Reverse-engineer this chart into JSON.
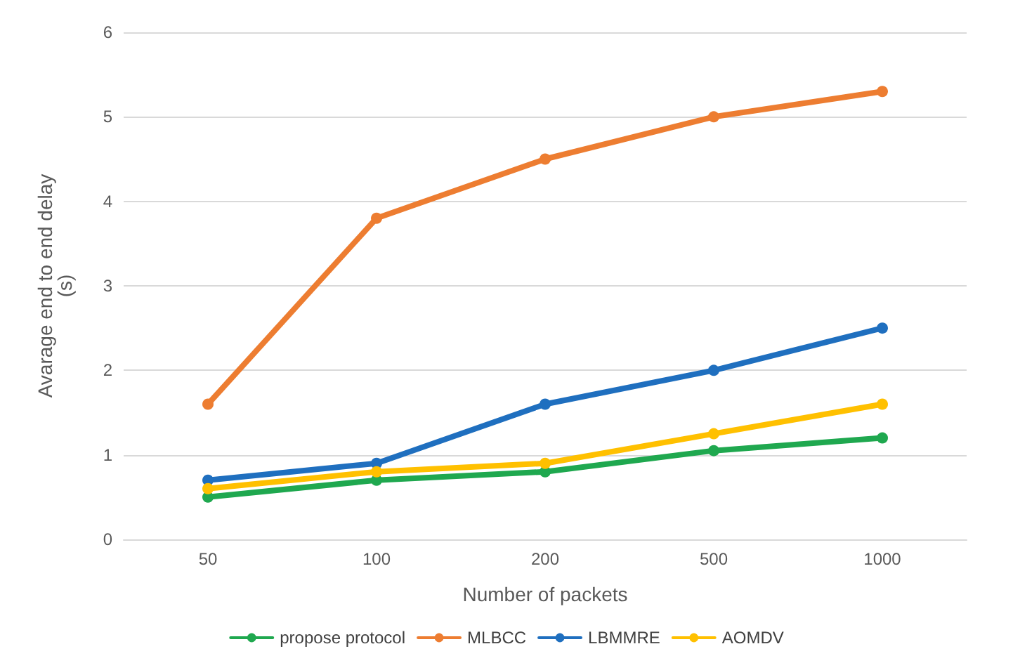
{
  "chart_data": {
    "type": "line",
    "xlabel": "Number of packets",
    "ylabel": "Avarage end to end delay\n(s)",
    "categories": [
      "50",
      "100",
      "200",
      "500",
      "1000"
    ],
    "series": [
      {
        "name": "propose protocol",
        "color": "#1fa84f",
        "values": [
          0.5,
          0.7,
          0.8,
          1.05,
          1.2
        ]
      },
      {
        "name": "MLBCC",
        "color": "#ed7d31",
        "values": [
          1.6,
          3.8,
          4.5,
          5.0,
          5.3
        ]
      },
      {
        "name": "LBMMRE",
        "color": "#1f6fbf",
        "values": [
          0.7,
          0.9,
          1.6,
          2.0,
          2.5
        ]
      },
      {
        "name": "AOMDV",
        "color": "#ffc000",
        "values": [
          0.6,
          0.8,
          0.9,
          1.25,
          1.6
        ]
      }
    ],
    "ylim": [
      0,
      6
    ],
    "yticks": [
      0,
      1,
      2,
      3,
      4,
      5,
      6
    ],
    "grid": "y",
    "legend": "bottom",
    "marker": "circle",
    "line_style": "solid"
  }
}
